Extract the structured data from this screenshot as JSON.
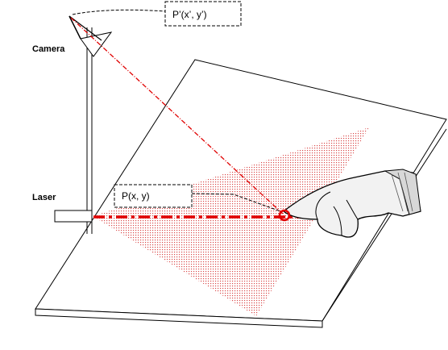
{
  "labels": {
    "camera": "Camera",
    "laser": "Laser",
    "projected_point": "P’(x’, y’)",
    "touch_point": "P(x, y)"
  },
  "colors": {
    "laser_red": "#e00000",
    "outline": "#000000",
    "dot_pattern": "#d42a2a"
  }
}
